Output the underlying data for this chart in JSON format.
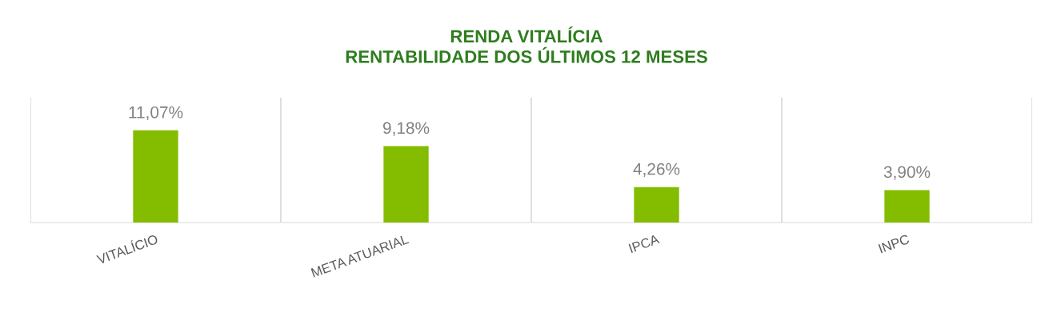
{
  "chart_data": {
    "type": "bar",
    "title": "RENDA VITALÍCIA\nRENTABILIDADE DOS ÚLTIMOS 12 MESES",
    "categories": [
      "VITALÍCIO",
      "META ATUARIAL",
      "IPCA",
      "INPC"
    ],
    "values": [
      11.07,
      9.18,
      4.26,
      3.9
    ],
    "value_labels": [
      "11,07%",
      "9,18%",
      "4,26%",
      "3,90%"
    ],
    "color": "#84bc00",
    "ylim": [
      0,
      15
    ],
    "grid": "x",
    "tick_labels": "x"
  }
}
